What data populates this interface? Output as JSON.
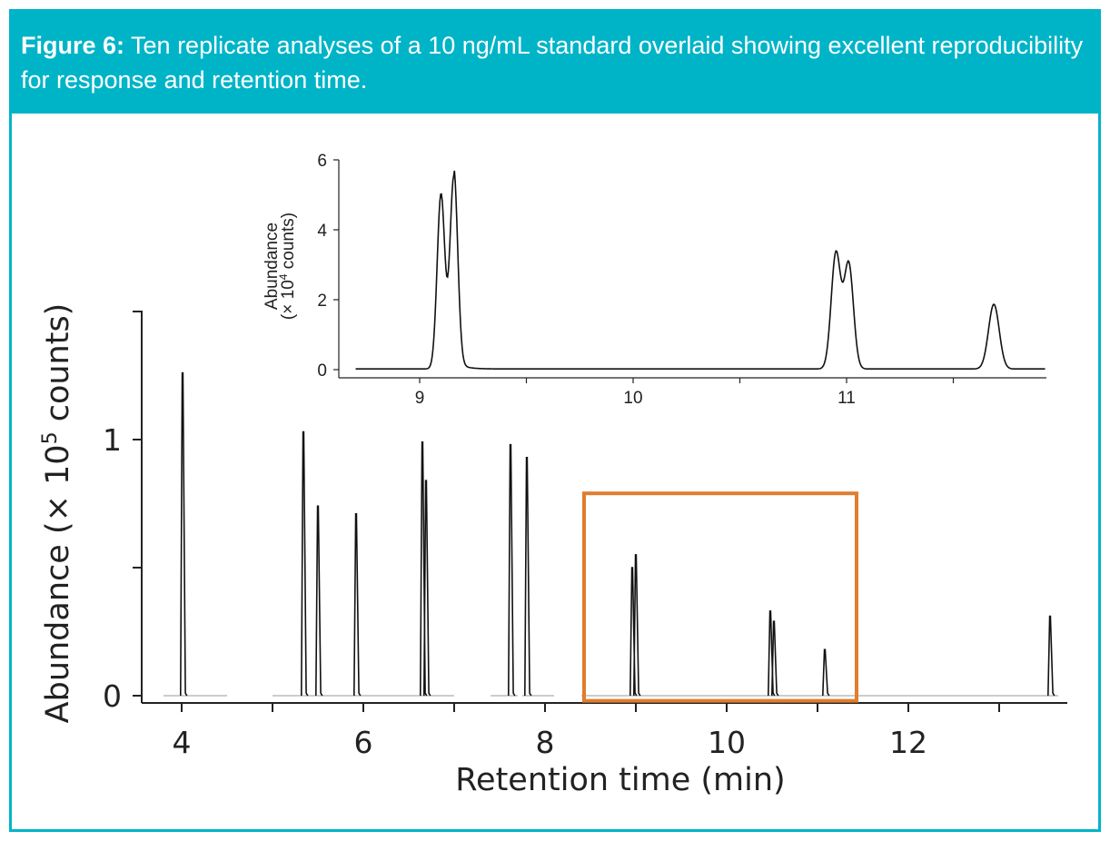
{
  "figure": {
    "label": "Figure 6:",
    "caption": " Ten replicate analyses of a 10 ng/mL standard overlaid showing excellent reproducibility for response and retention time."
  },
  "colors": {
    "accent": "#00b4c8",
    "trace": "#111111",
    "highlight": "#e07d2e"
  },
  "chart_data": [
    {
      "id": "main",
      "type": "line",
      "title": "",
      "xlabel": "Retention time (min)",
      "ylabel_prefix": "Abundance (× 10",
      "ylabel_exp": "5",
      "ylabel_suffix": " counts)",
      "xlim": [
        3.6,
        13.75
      ],
      "ylim": [
        0,
        1.5
      ],
      "xticks_major": [
        4,
        6,
        8,
        10,
        12
      ],
      "xticks_minor": [
        5,
        7,
        9,
        11,
        13
      ],
      "yticks_major": [
        0,
        1
      ],
      "yticks_minor": [
        0.5,
        1.5
      ],
      "peaks": [
        {
          "rt": 4.01,
          "height": 1.26
        },
        {
          "rt": 5.34,
          "height": 1.03
        },
        {
          "rt": 5.5,
          "height": 0.74
        },
        {
          "rt": 5.92,
          "height": 0.71
        },
        {
          "rt": 6.65,
          "height": 0.99
        },
        {
          "rt": 6.69,
          "height": 0.84
        },
        {
          "rt": 7.62,
          "height": 0.98
        },
        {
          "rt": 7.8,
          "height": 0.93
        },
        {
          "rt": 8.96,
          "height": 0.5
        },
        {
          "rt": 9.0,
          "height": 0.55
        },
        {
          "rt": 10.48,
          "height": 0.33
        },
        {
          "rt": 10.52,
          "height": 0.29
        },
        {
          "rt": 11.08,
          "height": 0.18
        },
        {
          "rt": 13.56,
          "height": 0.31
        }
      ],
      "highlight_range": {
        "x": [
          8.43,
          11.43
        ],
        "y": [
          -0.02,
          0.79
        ]
      }
    },
    {
      "id": "inset",
      "type": "line",
      "title": "",
      "xlabel": "",
      "ylabel_line1": "Abundance",
      "ylabel_line2_prefix": "(× 10",
      "ylabel_exp": "4",
      "ylabel_line2_suffix": " counts)",
      "xlim": [
        8.64,
        11.95
      ],
      "ylim": [
        0,
        6
      ],
      "xticks_major": [
        9,
        10,
        11
      ],
      "xticks_minor": [
        9.5,
        10.5,
        11.5
      ],
      "yticks_major": [
        0,
        2,
        4,
        6
      ],
      "peaks": [
        {
          "rt": 9.1,
          "height": 5.0
        },
        {
          "rt": 9.16,
          "height": 5.5
        },
        {
          "rt": 10.95,
          "height": 3.3
        },
        {
          "rt": 11.01,
          "height": 3.0
        },
        {
          "rt": 11.69,
          "height": 1.85
        }
      ]
    }
  ]
}
